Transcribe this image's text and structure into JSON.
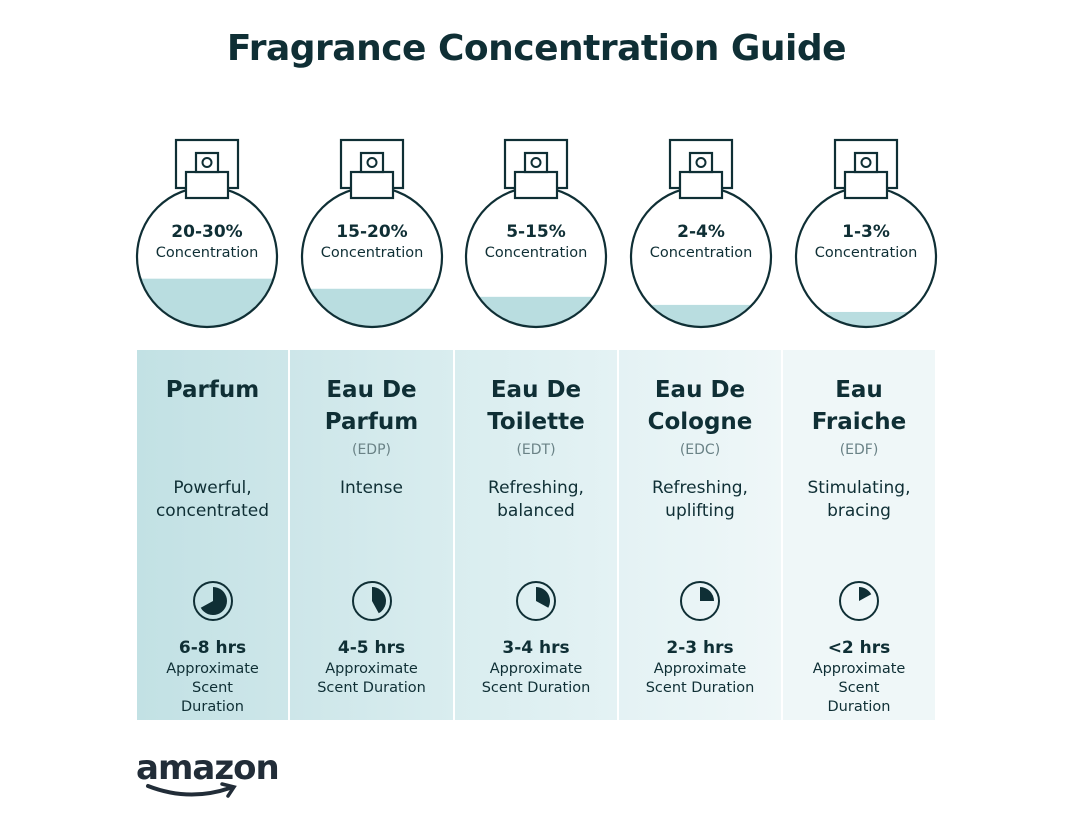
{
  "title": "Fragrance Concentration Guide",
  "colors": {
    "text": "#0f2f35",
    "liquid": "#b9dde0",
    "column_shades": [
      "#c2e1e4",
      "#cde6e9",
      "#d9edef",
      "#e4f2f4",
      "#eff7f8"
    ]
  },
  "types": [
    {
      "concentration": "20-30%",
      "concentration_label": "Concentration",
      "fill_level": 0.4,
      "name": "Parfum",
      "abbr": "",
      "description": "Powerful, concentrated",
      "duration": "6-8 hrs",
      "duration_label": "Approximate Scent Duration",
      "clock_fraction": 0.67
    },
    {
      "concentration": "15-20%",
      "concentration_label": "Concentration",
      "fill_level": 0.3,
      "name": "Eau De Parfum",
      "abbr": "(EDP)",
      "description": "Intense",
      "duration": "4-5 hrs",
      "duration_label": "Approximate Scent Duration",
      "clock_fraction": 0.42
    },
    {
      "concentration": "5-15%",
      "concentration_label": "Concentration",
      "fill_level": 0.22,
      "name": "Eau De Toilette",
      "abbr": "(EDT)",
      "description": "Refreshing, balanced",
      "duration": "3-4 hrs",
      "duration_label": "Approximate Scent Duration",
      "clock_fraction": 0.33
    },
    {
      "concentration": "2-4%",
      "concentration_label": "Concentration",
      "fill_level": 0.14,
      "name": "Eau De Cologne",
      "abbr": "(EDC)",
      "description": "Refreshing, uplifting",
      "duration": "2-3 hrs",
      "duration_label": "Approximate Scent Duration",
      "clock_fraction": 0.25
    },
    {
      "concentration": "1-3%",
      "concentration_label": "Concentration",
      "fill_level": 0.07,
      "name": "Eau Fraiche",
      "abbr": "(EDF)",
      "description": "Stimulating, bracing",
      "duration": "<2 hrs",
      "duration_label": "Approximate Scent Duration",
      "clock_fraction": 0.17
    }
  ],
  "logo": "amazon"
}
